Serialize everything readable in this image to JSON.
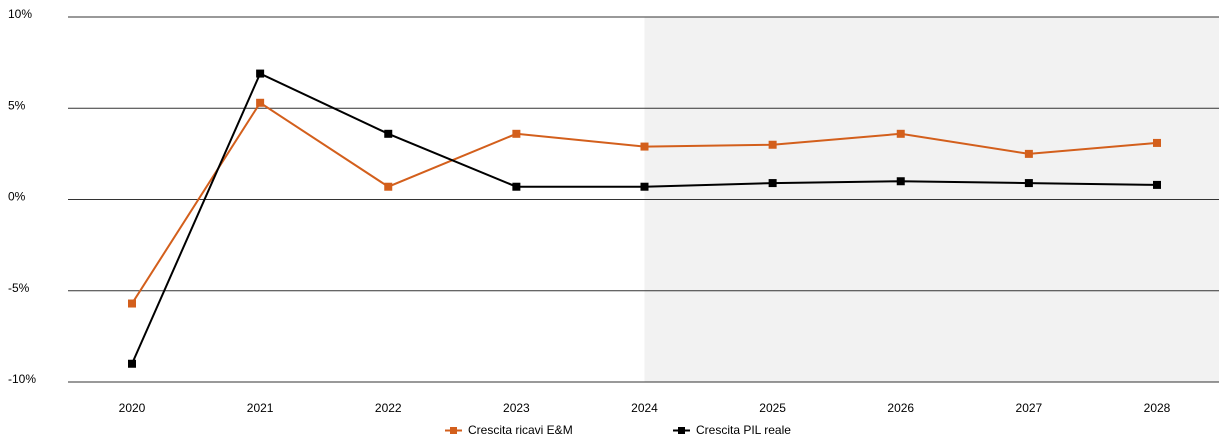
{
  "chart_data": {
    "type": "line",
    "categories": [
      "2020",
      "2021",
      "2022",
      "2023",
      "2024",
      "2025",
      "2026",
      "2027",
      "2028"
    ],
    "series": [
      {
        "name": "Crescita ricavi E&M",
        "color": "#d35f1c",
        "values": [
          -5.7,
          5.3,
          0.7,
          3.6,
          2.9,
          3.0,
          3.6,
          2.5,
          3.1
        ]
      },
      {
        "name": "Crescita PIL reale",
        "color": "#000000",
        "values": [
          -9.0,
          6.9,
          3.6,
          0.7,
          0.7,
          0.9,
          1.0,
          0.9,
          0.8
        ]
      }
    ],
    "ylim": [
      -10,
      10
    ],
    "yticks": [
      {
        "value": 10,
        "label": "10%"
      },
      {
        "value": 5,
        "label": "5%"
      },
      {
        "value": 0,
        "label": "0%"
      },
      {
        "value": -5,
        "label": "-5%"
      },
      {
        "value": -10,
        "label": "-10%"
      }
    ],
    "grid": true,
    "shaded_from": "2024",
    "shade_color": "#f2f2f2",
    "legend": "bottom"
  }
}
